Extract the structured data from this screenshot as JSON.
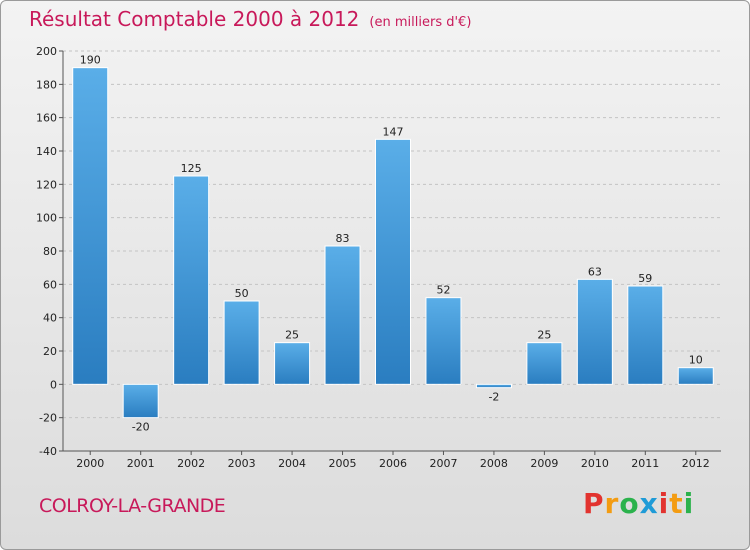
{
  "header": {
    "title": "Résultat Comptable 2000 à 2012",
    "subtitle": "(en milliers d'€)"
  },
  "footer": {
    "commune": "COLROY-LA-GRANDE",
    "logo": [
      "P",
      "r",
      "o",
      "x",
      "i",
      "t",
      "i"
    ]
  },
  "colors": {
    "title": "#c8195a",
    "bar_light": "#5aaee8",
    "bar_dark": "#2a7dc0",
    "logo": [
      "#e2332f",
      "#f39c12",
      "#2bb24c",
      "#1f9bd7",
      "#e2332f",
      "#f39c12",
      "#2bb24c"
    ]
  },
  "chart_data": {
    "type": "bar",
    "title": "Résultat Comptable 2000 à 2012",
    "ylabel": "en milliers d'€",
    "xlabel": "",
    "ylim": [
      -40,
      200
    ],
    "yticks": [
      -40,
      -20,
      0,
      20,
      40,
      60,
      80,
      100,
      120,
      140,
      160,
      180,
      200
    ],
    "grid": true,
    "categories": [
      "2000",
      "2001",
      "2002",
      "2003",
      "2004",
      "2005",
      "2006",
      "2007",
      "2008",
      "2009",
      "2010",
      "2011",
      "2012"
    ],
    "values": [
      190,
      -20,
      125,
      50,
      25,
      83,
      147,
      52,
      -2,
      25,
      63,
      59,
      10
    ]
  }
}
